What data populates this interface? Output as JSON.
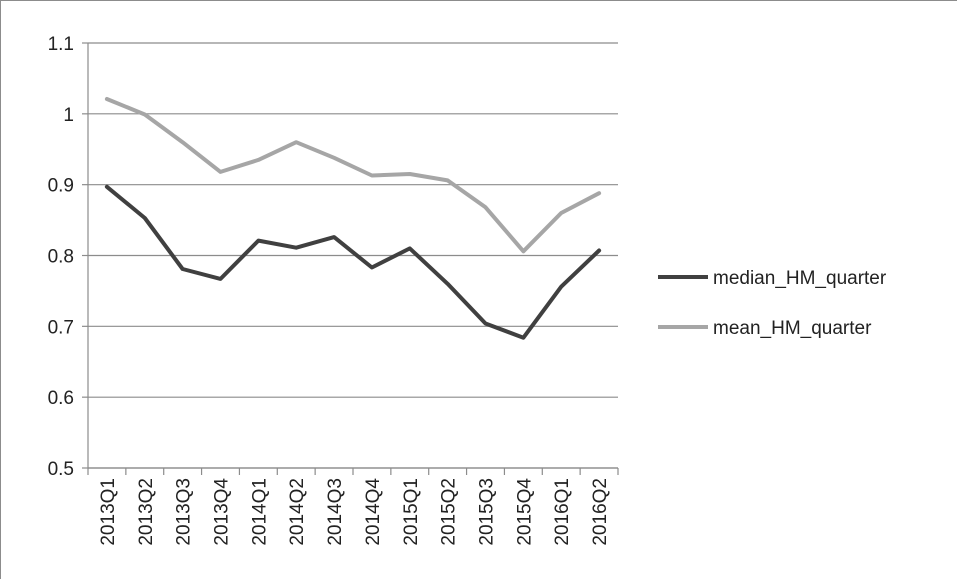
{
  "chart_data": {
    "type": "line",
    "title": "",
    "xlabel": "",
    "ylabel": "",
    "categories": [
      "2013Q1",
      "2013Q2",
      "2013Q3",
      "2013Q4",
      "2014Q1",
      "2014Q2",
      "2014Q3",
      "2014Q4",
      "2015Q1",
      "2015Q2",
      "2015Q3",
      "2015Q4",
      "2016Q1",
      "2016Q2"
    ],
    "ylim": [
      0.5,
      1.1
    ],
    "yticks": [
      "0.5",
      "0.6",
      "0.7",
      "0.8",
      "0.9",
      "1",
      "1.1"
    ],
    "grid": true,
    "legend_position": "right",
    "series": [
      {
        "name": "median_HM_quarter",
        "color": "#404040",
        "values": [
          0.897,
          0.853,
          0.781,
          0.767,
          0.821,
          0.811,
          0.826,
          0.783,
          0.81,
          0.76,
          0.704,
          0.684,
          0.756,
          0.807
        ]
      },
      {
        "name": "mean_HM_quarter",
        "color": "#a6a6a6",
        "values": [
          1.021,
          0.999,
          0.96,
          0.918,
          0.935,
          0.96,
          0.938,
          0.913,
          0.915,
          0.906,
          0.868,
          0.806,
          0.86,
          0.888
        ]
      }
    ]
  }
}
